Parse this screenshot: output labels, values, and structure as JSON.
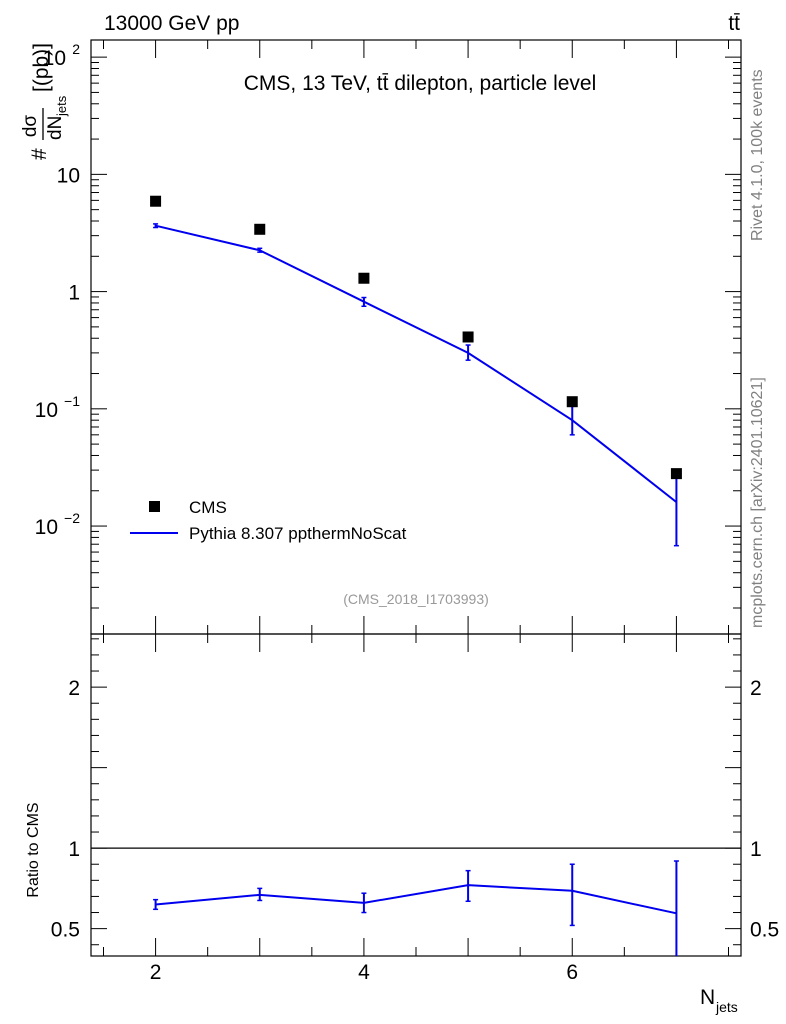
{
  "header": {
    "energy_label": "13000 GeV pp",
    "process_label": "tt̄"
  },
  "side_labels": {
    "rivet": "Rivet 4.1.0,  100k events",
    "source": "mcplots.cern.ch [arXiv:2401.10621]"
  },
  "analysis_id": "(CMS_2018_I1703993)",
  "colors": {
    "mc": "#0000ee",
    "data": "#000000",
    "ref_text": "#999999",
    "side_text": "#808080"
  },
  "chart_data": [
    {
      "type": "scatter",
      "panel": "main",
      "title": "CMS, 13 TeV, tt̄ dilepton, particle level",
      "ylabel": "#dσ/dN_jets [(pb)]",
      "ylabel_parts": {
        "num": "dσ",
        "den": "dN",
        "den_sub": "jets",
        "prefix": "#",
        "unit": "[(pb)]"
      },
      "yscale": "log",
      "ylim": [
        0.0012,
        140
      ],
      "xlim": [
        1.38,
        7.62
      ],
      "y_ticks": [
        {
          "value": 100,
          "label": "10",
          "exp": "2"
        },
        {
          "value": 10,
          "label": "10",
          "exp": ""
        },
        {
          "value": 1,
          "label": "1",
          "exp": ""
        },
        {
          "value": 0.1,
          "label": "10",
          "exp": "−1"
        },
        {
          "value": 0.01,
          "label": "10",
          "exp": "−2"
        }
      ],
      "legend_position": "bottom-left",
      "series": [
        {
          "name": "CMS",
          "style": "markers",
          "x": [
            2,
            3,
            4,
            5,
            6,
            7
          ],
          "y": [
            5.9,
            3.4,
            1.3,
            0.41,
            0.115,
            0.028
          ]
        },
        {
          "name": "Pythia 8.307 ppthermNoScat",
          "style": "line",
          "x": [
            2,
            3,
            4,
            5,
            6,
            7
          ],
          "y": [
            3.65,
            2.25,
            0.82,
            0.3,
            0.08,
            0.016
          ],
          "err_low": [
            3.52,
            2.17,
            0.75,
            0.26,
            0.06,
            0.0068
          ],
          "err_high": [
            3.78,
            2.34,
            0.89,
            0.35,
            0.105,
            0.026
          ]
        }
      ]
    },
    {
      "type": "line",
      "panel": "ratio",
      "ylabel": "Ratio to CMS",
      "xlabel": "N_jets",
      "xlabel_parts": {
        "main": "N",
        "sub": "jets"
      },
      "ylim": [
        0.33,
        2.33
      ],
      "xlim": [
        1.38,
        7.62
      ],
      "reference_line": 1,
      "y_tick_labels": [
        {
          "value": 0.5,
          "label": "0.5"
        },
        {
          "value": 1,
          "label": "1"
        },
        {
          "value": 2,
          "label": "2"
        }
      ],
      "x_tick_labels": [
        {
          "value": 2,
          "label": "2"
        },
        {
          "value": 4,
          "label": "4"
        },
        {
          "value": 6,
          "label": "6"
        }
      ],
      "series": [
        {
          "name": "Pythia 8.307 ppthermNoScat / CMS",
          "x": [
            2,
            3,
            4,
            5,
            6,
            7
          ],
          "y": [
            0.65,
            0.71,
            0.66,
            0.77,
            0.735,
            0.595
          ],
          "err_low": [
            0.62,
            0.675,
            0.6,
            0.67,
            0.52,
            0.33
          ],
          "err_high": [
            0.68,
            0.75,
            0.72,
            0.86,
            0.9,
            0.92
          ]
        }
      ]
    }
  ]
}
